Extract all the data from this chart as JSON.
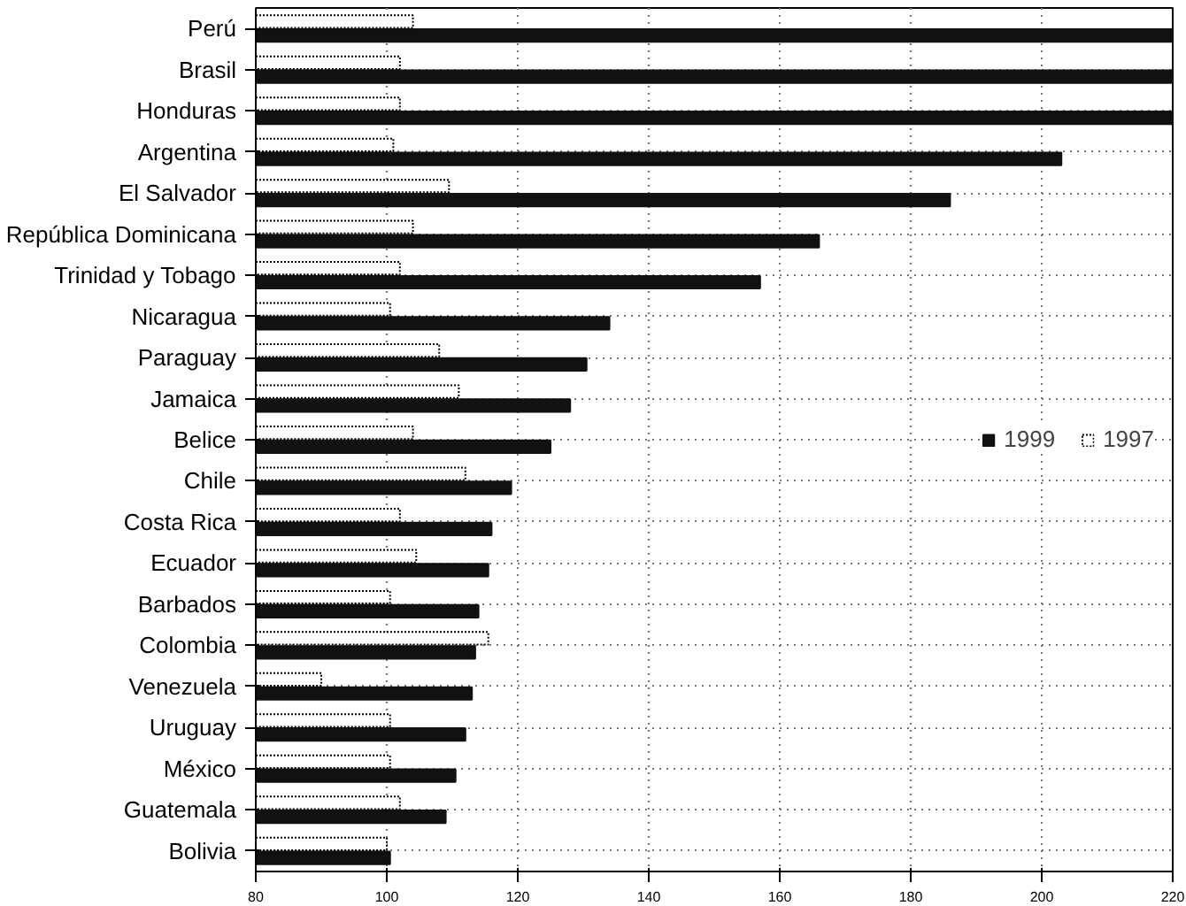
{
  "chart_data": {
    "type": "bar",
    "orientation": "horizontal",
    "categories": [
      "Perú",
      "Brasil",
      "Honduras",
      "Argentina",
      "El Salvador",
      "República Dominicana",
      "Trinidad y Tobago",
      "Nicaragua",
      "Paraguay",
      "Jamaica",
      "Belice",
      "Chile",
      "Costa Rica",
      "Ecuador",
      "Barbados",
      "Colombia",
      "Venezuela",
      "Uruguay",
      "México",
      "Guatemala",
      "Bolivia"
    ],
    "series": [
      {
        "name": "1999",
        "color": "#111111",
        "values": [
          220,
          220,
          220,
          203,
          186,
          166,
          157,
          134,
          130.5,
          128,
          125,
          119,
          116,
          115.5,
          114,
          113.5,
          113,
          112,
          110.5,
          109,
          100.5
        ]
      },
      {
        "name": "1997",
        "color": "#ffffff",
        "values": [
          104,
          102,
          102,
          101,
          109.5,
          104,
          102,
          100.5,
          108,
          111,
          104,
          112,
          102,
          104.5,
          100.5,
          115.5,
          90,
          100.5,
          100.5,
          102,
          100
        ]
      }
    ],
    "xlim": [
      80,
      220
    ],
    "xticks": [
      80,
      100,
      120,
      140,
      160,
      180,
      200,
      220
    ],
    "grid": true,
    "legend": "center right"
  }
}
